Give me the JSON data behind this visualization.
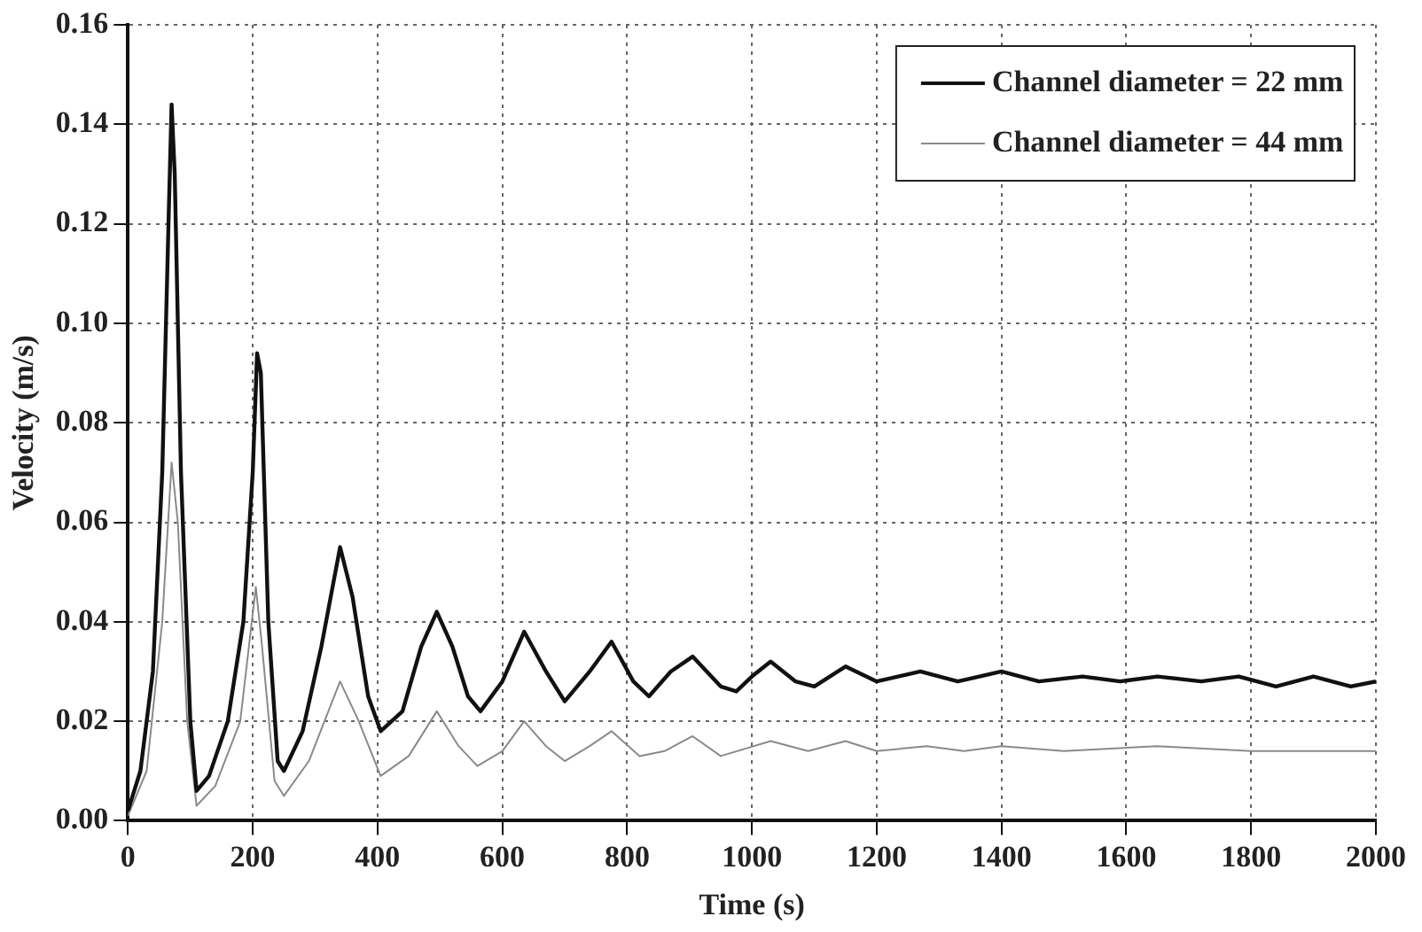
{
  "chart_data": {
    "type": "line",
    "xlabel": "Time (s)",
    "ylabel": "Velocity (m/s)",
    "xlim": [
      0,
      2000
    ],
    "xticks": [
      0,
      200,
      400,
      600,
      800,
      1000,
      1200,
      1400,
      1600,
      1800,
      2000
    ],
    "ylim": [
      0,
      0.16
    ],
    "yticks": [
      {
        "value": 0,
        "label": "0.00"
      },
      0.02,
      0.04,
      0.06,
      0.08,
      {
        "value": 0.1,
        "label": "0.10"
      },
      0.12,
      0.14,
      0.16
    ],
    "grid": true,
    "legend": "top right",
    "marker": "none",
    "line_style": "solid",
    "series": [
      {
        "name": "Channel diameter = 22 mm",
        "color": "#111111",
        "x": [
          0,
          20,
          40,
          55,
          65,
          70,
          75,
          85,
          100,
          110,
          130,
          160,
          185,
          200,
          207,
          213,
          225,
          240,
          250,
          280,
          310,
          340,
          360,
          385,
          405,
          440,
          470,
          495,
          520,
          545,
          565,
          600,
          635,
          670,
          700,
          740,
          775,
          810,
          835,
          870,
          905,
          950,
          975,
          1000,
          1030,
          1070,
          1100,
          1150,
          1200,
          1270,
          1330,
          1400,
          1460,
          1530,
          1590,
          1650,
          1720,
          1780,
          1840,
          1900,
          1960,
          2000
        ],
        "values": [
          0.002,
          0.01,
          0.03,
          0.07,
          0.12,
          0.144,
          0.13,
          0.07,
          0.02,
          0.006,
          0.009,
          0.02,
          0.04,
          0.07,
          0.094,
          0.09,
          0.04,
          0.012,
          0.01,
          0.018,
          0.035,
          0.055,
          0.045,
          0.025,
          0.018,
          0.022,
          0.035,
          0.042,
          0.035,
          0.025,
          0.022,
          0.028,
          0.038,
          0.03,
          0.024,
          0.03,
          0.036,
          0.028,
          0.025,
          0.03,
          0.033,
          0.027,
          0.026,
          0.029,
          0.032,
          0.028,
          0.027,
          0.031,
          0.028,
          0.03,
          0.028,
          0.03,
          0.028,
          0.029,
          0.028,
          0.029,
          0.028,
          0.029,
          0.027,
          0.029,
          0.027,
          0.028
        ]
      },
      {
        "name": "Channel diameter = 44 mm",
        "color": "#8a8a8a",
        "x": [
          0,
          30,
          55,
          70,
          80,
          95,
          110,
          140,
          180,
          205,
          215,
          235,
          250,
          290,
          340,
          370,
          405,
          450,
          495,
          530,
          560,
          600,
          635,
          670,
          700,
          740,
          775,
          820,
          860,
          905,
          950,
          1030,
          1090,
          1150,
          1200,
          1280,
          1340,
          1400,
          1500,
          1650,
          1800,
          2000
        ],
        "values": [
          0.001,
          0.01,
          0.04,
          0.072,
          0.06,
          0.02,
          0.003,
          0.007,
          0.02,
          0.047,
          0.035,
          0.008,
          0.005,
          0.012,
          0.028,
          0.02,
          0.009,
          0.013,
          0.022,
          0.015,
          0.011,
          0.014,
          0.02,
          0.015,
          0.012,
          0.015,
          0.018,
          0.013,
          0.014,
          0.017,
          0.013,
          0.016,
          0.014,
          0.016,
          0.014,
          0.015,
          0.014,
          0.015,
          0.014,
          0.015,
          0.014,
          0.014
        ]
      }
    ]
  }
}
